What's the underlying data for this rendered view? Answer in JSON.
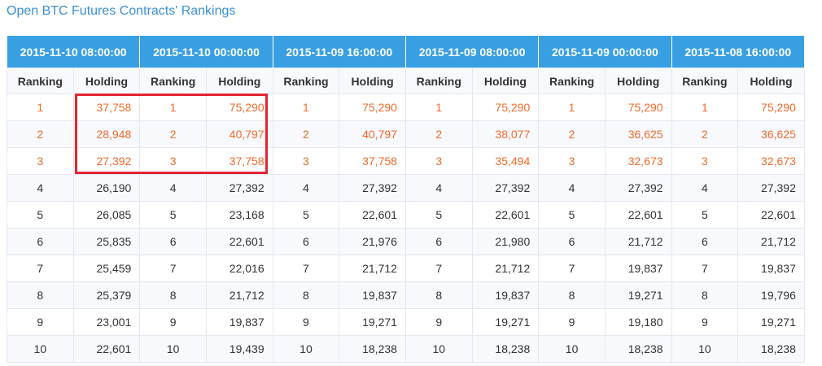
{
  "page": {
    "title": "Open BTC Futures Contracts' Rankings"
  },
  "table": {
    "column_labels": {
      "rank": "Ranking",
      "holding": "Holding"
    },
    "groups": [
      "2015-11-10 08:00:00",
      "2015-11-10 00:00:00",
      "2015-11-09 16:00:00",
      "2015-11-09 08:00:00",
      "2015-11-09 00:00:00",
      "2015-11-08 16:00:00"
    ],
    "rows": [
      {
        "rank": "1",
        "holdings": [
          "37,758",
          "75,290",
          "75,290",
          "75,290",
          "75,290",
          "75,290"
        ]
      },
      {
        "rank": "2",
        "holdings": [
          "28,948",
          "40,797",
          "40,797",
          "38,077",
          "36,625",
          "36,625"
        ]
      },
      {
        "rank": "3",
        "holdings": [
          "27,392",
          "37,758",
          "37,758",
          "35,494",
          "32,673",
          "32,673"
        ]
      },
      {
        "rank": "4",
        "holdings": [
          "26,190",
          "27,392",
          "27,392",
          "27,392",
          "27,392",
          "27,392"
        ]
      },
      {
        "rank": "5",
        "holdings": [
          "26,085",
          "23,168",
          "22,601",
          "22,601",
          "22,601",
          "22,601"
        ]
      },
      {
        "rank": "6",
        "holdings": [
          "25,835",
          "22,601",
          "21,976",
          "21,980",
          "21,712",
          "21,712"
        ]
      },
      {
        "rank": "7",
        "holdings": [
          "25,459",
          "22,016",
          "21,712",
          "21,712",
          "19,837",
          "19,837"
        ]
      },
      {
        "rank": "8",
        "holdings": [
          "25,379",
          "21,712",
          "19,837",
          "19,837",
          "19,271",
          "19,796"
        ]
      },
      {
        "rank": "9",
        "holdings": [
          "23,001",
          "19,837",
          "19,271",
          "19,271",
          "19,180",
          "19,271"
        ]
      },
      {
        "rank": "10",
        "holdings": [
          "22,601",
          "19,439",
          "18,238",
          "18,238",
          "18,238",
          "18,238"
        ]
      }
    ],
    "top_rows_highlight_color": "#f06a2a",
    "header_bg_color": "#38a0e2"
  },
  "annotation": {
    "box_color": "#e32431"
  }
}
